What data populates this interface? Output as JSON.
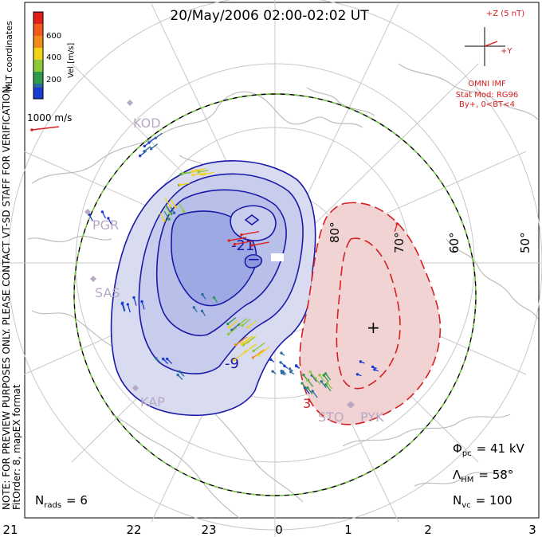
{
  "title": "20/May/2006 02:00-02:02 UT",
  "colors": {
    "positive_contour": "#1a1aa8",
    "negative_contour": "#d42020",
    "positive_fill": "#d9dcf1",
    "negative_fill": "#f2d3d3",
    "boundary": "#000000",
    "boundary_dash": "#7ad23c",
    "coast": "#bdbdbd",
    "grid": "#c8c8c8",
    "station": "#b9a8c4",
    "imf": "#d41c1c"
  },
  "colorbar": {
    "label": "Vel [m/s]",
    "ticks": [
      "600",
      "400",
      "200"
    ],
    "colors": [
      "#e0201a",
      "#f08c1a",
      "#f2d21a",
      "#8cc83c",
      "#2e9a4c",
      "#2a6aa0",
      "#1a3ad4"
    ]
  },
  "coord_label": "MLT coordinates",
  "vector_scale": "1000 m/s",
  "side_note_1": "NOTE: FOR PREVIEW PURPOSES ONLY. PLEASE CONTACT VT-SD STAFF FOR VERIFICATION.",
  "side_note_2": "FitOrder: 8, mapEX format",
  "imf": {
    "scale": "+Z (5 nT)",
    "axis": "+Y",
    "label": "OMNI IMF",
    "model_1": "Stat Mod: RG96",
    "model_2": "By+, 0<BT<4"
  },
  "stations": [
    "KOD",
    "PGR",
    "SAS",
    "KAP",
    "STO",
    "PYK"
  ],
  "lat_labels": [
    "60°",
    "50°",
    "70°",
    "80°"
  ],
  "contour_labels": [
    "-21",
    "-9",
    "3"
  ],
  "stats": {
    "phi_sym": "Φ",
    "phi_sub": "pc",
    "phi_val": "= 41 kV",
    "lam_sym": "Λ",
    "lam_sub": "HM",
    "lam_val": "= 58°",
    "nvc_sym": "N",
    "nvc_sub": "vc",
    "nvc_val": "= 100",
    "nrads_sym": "N",
    "nrads_sub": "rads",
    "nrads_val": "= 6"
  },
  "mlt_ticks": [
    "21",
    "22",
    "23",
    "0",
    "1",
    "2",
    "3"
  ]
}
